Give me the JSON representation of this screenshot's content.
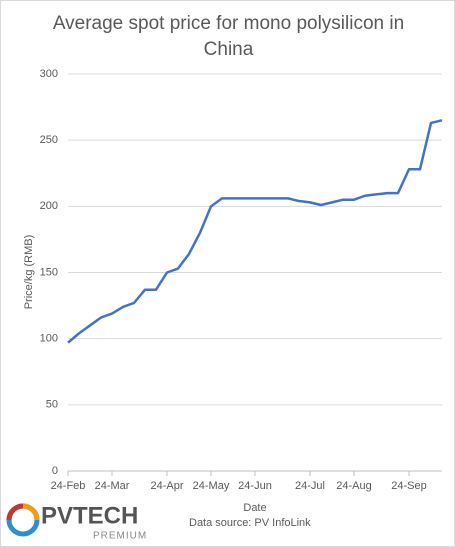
{
  "chart_data": {
    "type": "line",
    "title": "Average spot price for mono polysilicon in China",
    "x_label": "Date",
    "y_label": "Price/kg (RMB)",
    "source": "Data source: PV InfoLink",
    "categories": [
      "24-Feb",
      null,
      null,
      null,
      "24-Mar",
      null,
      null,
      null,
      null,
      "24-Apr",
      null,
      null,
      null,
      "24-May",
      null,
      null,
      null,
      "24-Jun",
      null,
      null,
      null,
      null,
      "24-Jul",
      null,
      null,
      null,
      "24-Aug",
      null,
      null,
      null,
      null,
      "24-Sep",
      null,
      null,
      null
    ],
    "series": [
      {
        "name": "Average spot price",
        "color": "#4472c4",
        "values": [
          97,
          104,
          110,
          116,
          119,
          124,
          127,
          137,
          137,
          150,
          153,
          164,
          180,
          200,
          206,
          206,
          206,
          206,
          206,
          206,
          206,
          204,
          203,
          201,
          203,
          205,
          205,
          208,
          209,
          210,
          210,
          228,
          228,
          263,
          265
        ]
      }
    ],
    "ylim": [
      0,
      300
    ],
    "yticks": [
      0,
      50,
      100,
      150,
      200,
      250,
      300
    ],
    "grid": true
  },
  "logo": {
    "title": "PVTECH",
    "subtitle": "PREMIUM"
  }
}
